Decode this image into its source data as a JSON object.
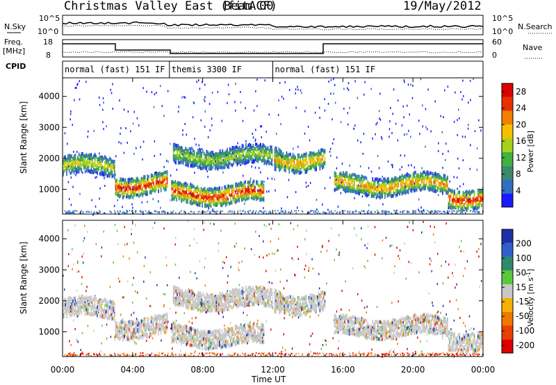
{
  "header": {
    "title": "Christmas Valley East (fitACF)",
    "beam": "Beam 00",
    "date": "19/May/2012"
  },
  "top_panels": {
    "nsky_label": "N.Sky",
    "nsky_ticks": [
      "10^5",
      "10^0"
    ],
    "nsearch_label": "N.Search",
    "nsearch_ticks": [
      "10^5",
      "10^0"
    ],
    "freq_label": "Freq.",
    "freq_unit": "[MHz]",
    "freq_ticks": [
      "18",
      "8"
    ],
    "nave_label": "Nave",
    "nave_ticks": [
      "60",
      "0"
    ],
    "cpid_label": "CPID",
    "modes": [
      {
        "label": "normal (fast) 151 IF",
        "start_h": 0,
        "end_h": 6.1
      },
      {
        "label": "themis 3300 IF",
        "start_h": 6.1,
        "end_h": 12.0
      },
      {
        "label": "normal (fast) 151 IF",
        "start_h": 12.0,
        "end_h": 24
      }
    ]
  },
  "chart_data": [
    {
      "type": "heatmap",
      "title": "",
      "xlabel": "Time UT",
      "ylabel": "Slant Range [km]",
      "xlim": [
        0,
        24
      ],
      "ylim": [
        200,
        4600
      ],
      "x_ticks": [
        "00:00",
        "04:00",
        "08:00",
        "12:00",
        "16:00",
        "20:00",
        "00:00"
      ],
      "y_ticks": [
        1000,
        2000,
        3000,
        4000
      ],
      "colorbar": {
        "label": "Power [dB]",
        "ticks": [
          4,
          8,
          12,
          16,
          20,
          24,
          28
        ],
        "range": [
          0,
          30
        ],
        "colors": [
          "#1a1aff",
          "#2f6fbf",
          "#3a8a6a",
          "#40b040",
          "#a6d01a",
          "#f5c000",
          "#f08000",
          "#e83000",
          "#dd0000"
        ]
      },
      "echo_regions": [
        {
          "t_start": 0.0,
          "t_end": 3.0,
          "range_center": 1800,
          "peak_db": 18
        },
        {
          "t_start": 3.0,
          "t_end": 6.0,
          "range_center": 1200,
          "peak_db": 28
        },
        {
          "t_start": 6.2,
          "t_end": 11.5,
          "range_center": 900,
          "peak_db": 28
        },
        {
          "t_start": 6.3,
          "t_end": 12.5,
          "range_center": 2100,
          "peak_db": 16
        },
        {
          "t_start": 12.0,
          "t_end": 15.0,
          "range_center": 2000,
          "peak_db": 22
        },
        {
          "t_start": 15.5,
          "t_end": 22.0,
          "range_center": 1200,
          "peak_db": 22
        },
        {
          "t_start": 22.0,
          "t_end": 24.0,
          "range_center": 800,
          "peak_db": 28
        }
      ]
    },
    {
      "type": "heatmap",
      "title": "",
      "xlabel": "Time UT",
      "ylabel": "Slant Range [km]",
      "xlim": [
        0,
        24
      ],
      "ylim": [
        200,
        4600
      ],
      "x_ticks": [
        "00:00",
        "04:00",
        "08:00",
        "12:00",
        "16:00",
        "20:00",
        "00:00"
      ],
      "y_ticks": [
        1000,
        2000,
        3000,
        4000
      ],
      "colorbar": {
        "label": "Velocity [m s^-1]",
        "ticks": [
          200,
          100,
          50,
          15,
          -15,
          -50,
          -100,
          -200
        ],
        "range": [
          -250,
          250
        ],
        "colors": [
          "#1f2fa8",
          "#3060c8",
          "#2e8a6a",
          "#5ac83a",
          "#c8c8c8",
          "#f5b000",
          "#f07800",
          "#e84000",
          "#dd0000"
        ]
      }
    }
  ]
}
